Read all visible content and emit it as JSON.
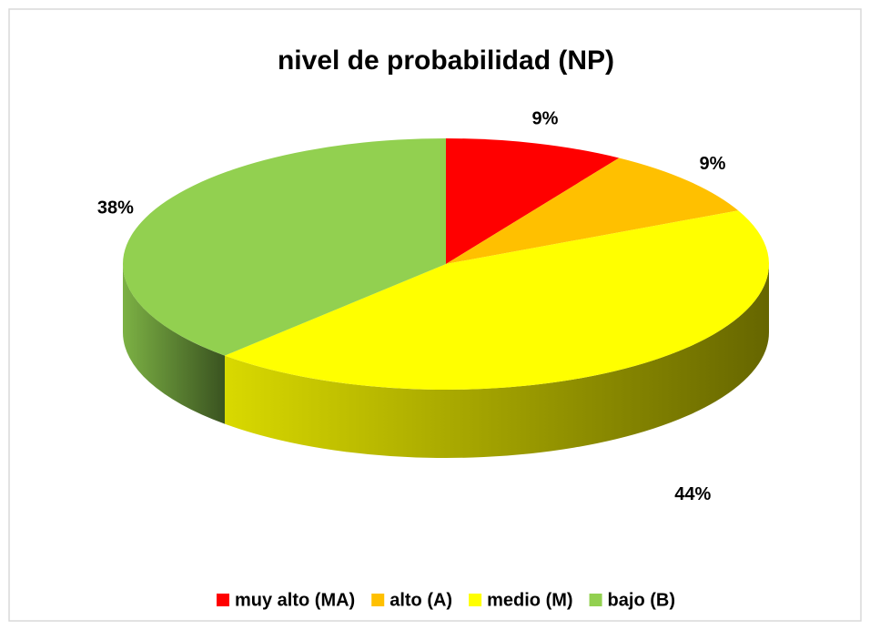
{
  "chart_data": {
    "type": "pie3d",
    "title": "nivel de probabilidad (NP)",
    "categories": [
      "muy alto (MA)",
      "alto (A)",
      "medio (M)",
      "bajo (B)"
    ],
    "values": [
      9,
      9,
      44,
      38
    ],
    "value_labels": [
      "9%",
      "9%",
      "44%",
      "38%"
    ],
    "colors": [
      "#ff0000",
      "#ffc000",
      "#ffff00",
      "#92d050"
    ],
    "legend": "bottom"
  }
}
